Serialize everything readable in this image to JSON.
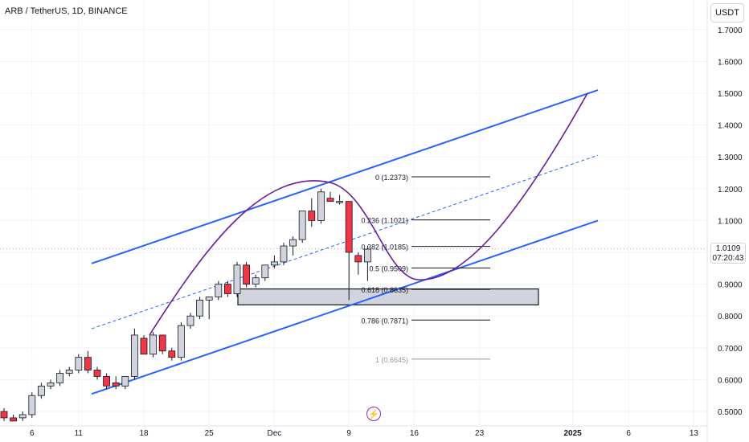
{
  "header": {
    "title": "ARB / TetherUS, 1D, BINANCE"
  },
  "price_scale": {
    "unit": "USDT",
    "current_price": "1.0109",
    "countdown": "07:20:43"
  },
  "colors": {
    "up": "#d1d4dc",
    "down": "#f23645",
    "channel": "#2962ff",
    "curve": "#6a1b9a",
    "fib": "#131722"
  },
  "chart_data": {
    "type": "candlestick",
    "y_ticks": [
      "1.7000",
      "1.6000",
      "1.5000",
      "1.4000",
      "1.3000",
      "1.2000",
      "1.1000",
      "1.0000",
      "0.9000",
      "0.8000",
      "0.7000",
      "0.6000",
      "0.5000"
    ],
    "x_ticks": [
      "6",
      "11",
      "18",
      "25",
      "Dec",
      "9",
      "16",
      "23",
      "2025",
      "6",
      "13"
    ],
    "ylim": [
      0.46,
      1.78
    ],
    "candles": [
      {
        "o": 0.5,
        "h": 0.51,
        "l": 0.47,
        "c": 0.48
      },
      {
        "o": 0.48,
        "h": 0.49,
        "l": 0.47,
        "c": 0.47
      },
      {
        "o": 0.48,
        "h": 0.5,
        "l": 0.47,
        "c": 0.49
      },
      {
        "o": 0.49,
        "h": 0.56,
        "l": 0.48,
        "c": 0.55
      },
      {
        "o": 0.55,
        "h": 0.59,
        "l": 0.54,
        "c": 0.58
      },
      {
        "o": 0.58,
        "h": 0.6,
        "l": 0.57,
        "c": 0.59
      },
      {
        "o": 0.59,
        "h": 0.63,
        "l": 0.58,
        "c": 0.62
      },
      {
        "o": 0.62,
        "h": 0.64,
        "l": 0.61,
        "c": 0.63
      },
      {
        "o": 0.63,
        "h": 0.68,
        "l": 0.62,
        "c": 0.67
      },
      {
        "o": 0.67,
        "h": 0.69,
        "l": 0.62,
        "c": 0.63
      },
      {
        "o": 0.63,
        "h": 0.64,
        "l": 0.6,
        "c": 0.61
      },
      {
        "o": 0.61,
        "h": 0.62,
        "l": 0.57,
        "c": 0.58
      },
      {
        "o": 0.59,
        "h": 0.61,
        "l": 0.57,
        "c": 0.58
      },
      {
        "o": 0.58,
        "h": 0.61,
        "l": 0.57,
        "c": 0.61
      },
      {
        "o": 0.61,
        "h": 0.76,
        "l": 0.6,
        "c": 0.74
      },
      {
        "o": 0.73,
        "h": 0.74,
        "l": 0.68,
        "c": 0.68
      },
      {
        "o": 0.68,
        "h": 0.75,
        "l": 0.67,
        "c": 0.74
      },
      {
        "o": 0.74,
        "h": 0.74,
        "l": 0.68,
        "c": 0.69
      },
      {
        "o": 0.69,
        "h": 0.7,
        "l": 0.66,
        "c": 0.67
      },
      {
        "o": 0.67,
        "h": 0.78,
        "l": 0.66,
        "c": 0.77
      },
      {
        "o": 0.77,
        "h": 0.81,
        "l": 0.76,
        "c": 0.8
      },
      {
        "o": 0.8,
        "h": 0.86,
        "l": 0.79,
        "c": 0.85
      },
      {
        "o": 0.85,
        "h": 0.86,
        "l": 0.79,
        "c": 0.86
      },
      {
        "o": 0.86,
        "h": 0.91,
        "l": 0.85,
        "c": 0.9
      },
      {
        "o": 0.9,
        "h": 0.91,
        "l": 0.86,
        "c": 0.87
      },
      {
        "o": 0.87,
        "h": 0.97,
        "l": 0.86,
        "c": 0.96
      },
      {
        "o": 0.96,
        "h": 0.97,
        "l": 0.89,
        "c": 0.9
      },
      {
        "o": 0.9,
        "h": 0.93,
        "l": 0.89,
        "c": 0.92
      },
      {
        "o": 0.92,
        "h": 0.96,
        "l": 0.91,
        "c": 0.96
      },
      {
        "o": 0.96,
        "h": 0.99,
        "l": 0.95,
        "c": 0.97
      },
      {
        "o": 0.97,
        "h": 1.03,
        "l": 0.96,
        "c": 1.02
      },
      {
        "o": 1.02,
        "h": 1.05,
        "l": 0.99,
        "c": 1.04
      },
      {
        "o": 1.04,
        "h": 1.13,
        "l": 1.03,
        "c": 1.13
      },
      {
        "o": 1.13,
        "h": 1.17,
        "l": 1.08,
        "c": 1.1
      },
      {
        "o": 1.1,
        "h": 1.2,
        "l": 1.09,
        "c": 1.19
      },
      {
        "o": 1.17,
        "h": 1.19,
        "l": 1.16,
        "c": 1.16
      },
      {
        "o": 1.16,
        "h": 1.18,
        "l": 1.15,
        "c": 1.16
      },
      {
        "o": 1.16,
        "h": 1.16,
        "l": 0.85,
        "c": 1.0
      },
      {
        "o": 0.99,
        "h": 1.0,
        "l": 0.93,
        "c": 0.97
      },
      {
        "o": 0.97,
        "h": 1.02,
        "l": 0.91,
        "c": 1.01
      }
    ],
    "fibonacci": [
      {
        "label": "0 (1.2373)",
        "value": 1.2373
      },
      {
        "label": "0.236 (1.1021)",
        "value": 1.1021
      },
      {
        "label": "0.382 (1.0185)",
        "value": 1.0185
      },
      {
        "label": "0.5 (0.9509)",
        "value": 0.9509
      },
      {
        "label": "0.618 (0.8835)",
        "value": 0.8835
      },
      {
        "label": "0.786 (0.7871)",
        "value": 0.7871
      },
      {
        "label": "1 (0.6645)",
        "value": 0.6645
      }
    ],
    "support_zone": {
      "top": 0.885,
      "bottom": 0.835
    },
    "channel": {
      "upper": [
        [
          0,
          0.965
        ],
        [
          1,
          1.51
        ]
      ],
      "middle": [
        [
          0,
          0.76
        ],
        [
          1,
          1.305
        ]
      ],
      "lower": [
        [
          0,
          0.555
        ],
        [
          1,
          1.1
        ]
      ]
    }
  }
}
